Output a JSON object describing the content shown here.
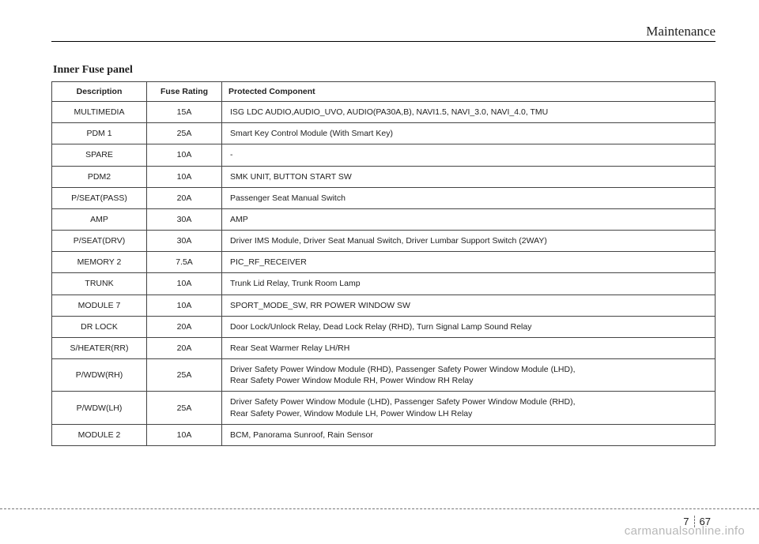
{
  "header": {
    "section": "Maintenance"
  },
  "table_title": "Inner Fuse panel",
  "columns": [
    "Description",
    "Fuse Rating",
    "Protected Component"
  ],
  "rows": [
    [
      "MULTIMEDIA",
      "15A",
      "ISG LDC AUDIO,AUDIO_UVO, AUDIO(PA30A,B), NAVI1.5, NAVI_3.0, NAVI_4.0, TMU"
    ],
    [
      "PDM 1",
      "25A",
      "Smart Key Control Module (With Smart Key)"
    ],
    [
      "SPARE",
      "10A",
      "-"
    ],
    [
      "PDM2",
      "10A",
      "SMK UNIT, BUTTON START SW"
    ],
    [
      "P/SEAT(PASS)",
      "20A",
      "Passenger Seat Manual Switch"
    ],
    [
      "AMP",
      "30A",
      "AMP"
    ],
    [
      "P/SEAT(DRV)",
      "30A",
      "Driver IMS Module, Driver Seat Manual Switch, Driver Lumbar Support Switch (2WAY)"
    ],
    [
      "MEMORY 2",
      "7.5A",
      "PIC_RF_RECEIVER"
    ],
    [
      "TRUNK",
      "10A",
      "Trunk Lid Relay, Trunk Room Lamp"
    ],
    [
      "MODULE 7",
      "10A",
      "SPORT_MODE_SW, RR POWER WINDOW SW"
    ],
    [
      "DR LOCK",
      "20A",
      "Door Lock/Unlock Relay, Dead Lock Relay (RHD), Turn Signal Lamp Sound Relay"
    ],
    [
      "S/HEATER(RR)",
      "20A",
      "Rear Seat Warmer Relay LH/RH"
    ],
    [
      "P/WDW(RH)",
      "25A",
      "Driver Safety Power Window Module (RHD), Passenger Safety Power Window Module (LHD),\nRear Safety Power Window Module RH, Power Window RH Relay"
    ],
    [
      "P/WDW(LH)",
      "25A",
      "Driver Safety Power Window Module (LHD), Passenger Safety Power Window Module (RHD),\nRear Safety Power, Window Module LH, Power Window LH Relay"
    ],
    [
      "MODULE 2",
      "10A",
      "BCM, Panorama Sunroof, Rain Sensor"
    ]
  ],
  "page_number": {
    "chapter": "7",
    "page": "67"
  },
  "watermark": "carmanualsonline.info",
  "colors": {
    "text": "#222222",
    "border": "#444444",
    "dashed": "#777777",
    "watermark": "#b8b8b8",
    "background": "#ffffff"
  },
  "fonts": {
    "serif": "Georgia",
    "sans": "Arial"
  }
}
